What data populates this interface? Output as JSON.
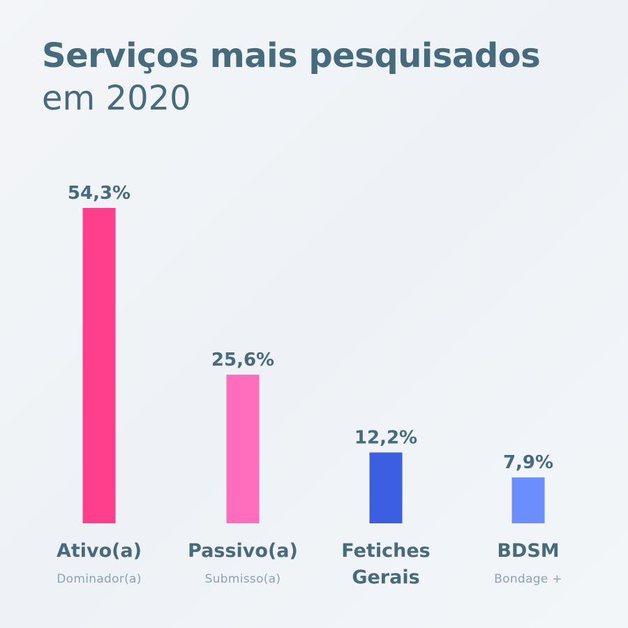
{
  "header": {
    "title": "Serviços mais pesquisados",
    "subtitle": "em 2020"
  },
  "chart_data": {
    "type": "bar",
    "categories": [
      [
        "Ativo(a)"
      ],
      [
        "Passivo(a)"
      ],
      [
        "Fetiches",
        "Gerais"
      ],
      [
        "BDSM"
      ]
    ],
    "sublabels": [
      "Dominador(a)",
      "Submisso(a)",
      "",
      "Bondage +"
    ],
    "values": [
      54.3,
      25.6,
      12.2,
      7.9
    ],
    "value_labels": [
      "54,3%",
      "25,6%",
      "12,2%",
      "7,9%"
    ],
    "colors": [
      "#ff3f8c",
      "#ff6dbc",
      "#3b5fe0",
      "#6a8efd"
    ],
    "unit": "%",
    "ylim": [
      0,
      54.3
    ],
    "grid": false,
    "legend": "none"
  }
}
